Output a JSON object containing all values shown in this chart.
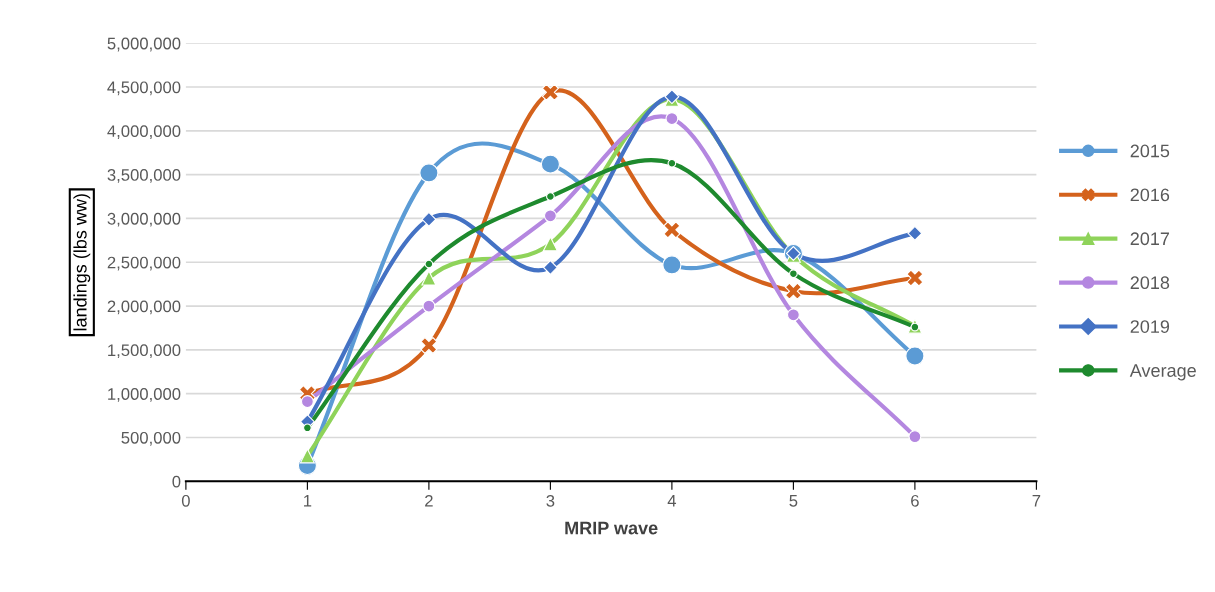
{
  "chart_data": {
    "type": "line",
    "xlabel": "MRIP wave",
    "ylabel": "landings (lbs ww)",
    "x": [
      1,
      2,
      3,
      4,
      5,
      6
    ],
    "xlim": [
      0,
      7
    ],
    "xticks": [
      0,
      1,
      2,
      3,
      4,
      5,
      6,
      7
    ],
    "ylim": [
      0,
      5000000
    ],
    "yticks": [
      {
        "value": 0,
        "label": "0"
      },
      {
        "value": 500000,
        "label": "500,000"
      },
      {
        "value": 1000000,
        "label": "1,000,000"
      },
      {
        "value": 1500000,
        "label": "1,500,000"
      },
      {
        "value": 2000000,
        "label": "2,000,000"
      },
      {
        "value": 2500000,
        "label": "2,500,000"
      },
      {
        "value": 3000000,
        "label": "3,000,000"
      },
      {
        "value": 3500000,
        "label": "3,500,000"
      },
      {
        "value": 4000000,
        "label": "4,000,000"
      },
      {
        "value": 4500000,
        "label": "4,500,000"
      },
      {
        "value": 5000000,
        "label": "5,000,000"
      }
    ],
    "grid": "y",
    "legend": "right",
    "line_style": "solid",
    "series": [
      {
        "name": "2015",
        "color": "#5b9bd5",
        "marker": "circle",
        "values": [
          180000,
          3520000,
          3620000,
          2470000,
          2600000,
          1430000
        ]
      },
      {
        "name": "2016",
        "color": "#d4621c",
        "marker": "cross",
        "values": [
          1000000,
          1550000,
          4440000,
          2870000,
          2170000,
          2320000
        ]
      },
      {
        "name": "2017",
        "color": "#8fd35a",
        "marker": "triangle",
        "values": [
          290000,
          2320000,
          2710000,
          4360000,
          2580000,
          1770000
        ]
      },
      {
        "name": "2018",
        "color": "#b487e0",
        "marker": "circle",
        "values": [
          910000,
          2000000,
          3030000,
          4140000,
          1900000,
          510000
        ]
      },
      {
        "name": "2019",
        "color": "#4472c4",
        "marker": "diamond",
        "values": [
          680000,
          2990000,
          2440000,
          4390000,
          2600000,
          2830000
        ]
      },
      {
        "name": "Average",
        "color": "#1e8a2e",
        "marker": "circle",
        "values": [
          610000,
          2480000,
          3250000,
          3630000,
          2370000,
          1760000
        ]
      }
    ]
  }
}
